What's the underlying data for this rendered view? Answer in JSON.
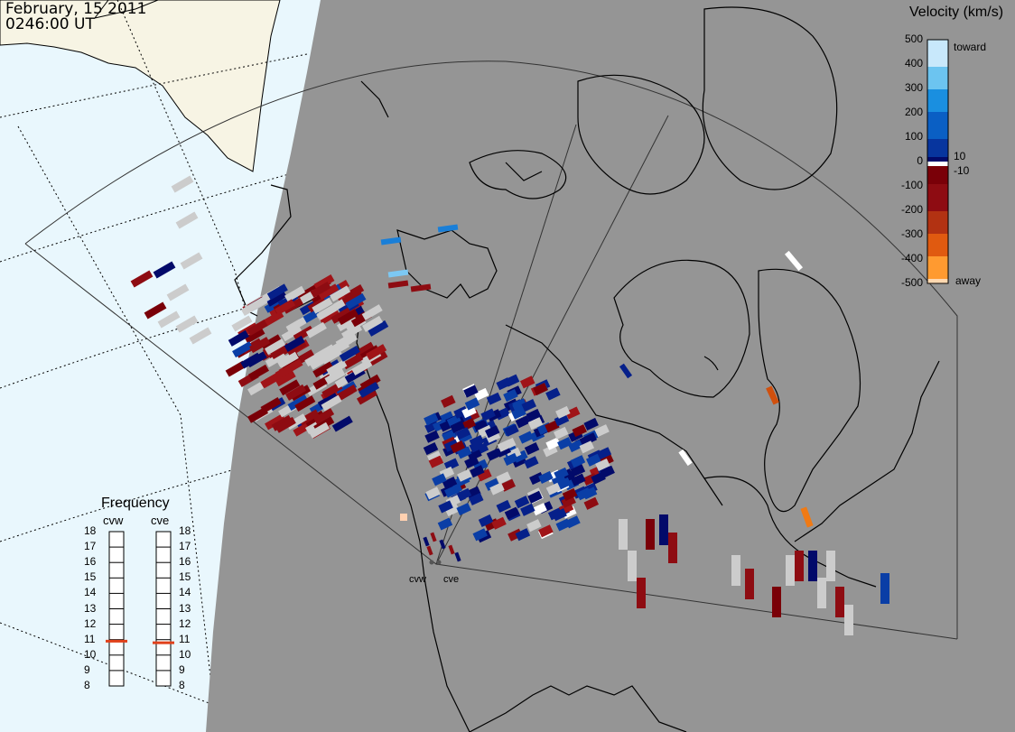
{
  "header": {
    "date": "February, 15 2011",
    "time": "0246:00 UT"
  },
  "colorbar": {
    "title": "Velocity (km/s)",
    "toward_label": "toward",
    "away_label": "away",
    "tick_labels": [
      "500",
      "400",
      "300",
      "200",
      "100",
      "0",
      "-100",
      "-200",
      "-300",
      "-400",
      "-500"
    ],
    "inner_labels": [
      "10",
      "-10"
    ]
  },
  "frequency": {
    "title": "Frequency",
    "radars": [
      {
        "name": "cvw",
        "value_mhz": 10.9
      },
      {
        "name": "cve",
        "value_mhz": 10.8
      }
    ],
    "scale_labels": [
      "18",
      "17",
      "16",
      "15",
      "14",
      "13",
      "12",
      "11",
      "10",
      "9",
      "8"
    ],
    "marker_color": "#e0401a"
  },
  "map": {
    "radar_labels": [
      "cvw",
      "cve"
    ],
    "colors": {
      "land_day": "#f7f4e4",
      "ocean_day": "#e9f7fd",
      "night": "#959595",
      "ground_scatter": "#cccccc"
    }
  }
}
